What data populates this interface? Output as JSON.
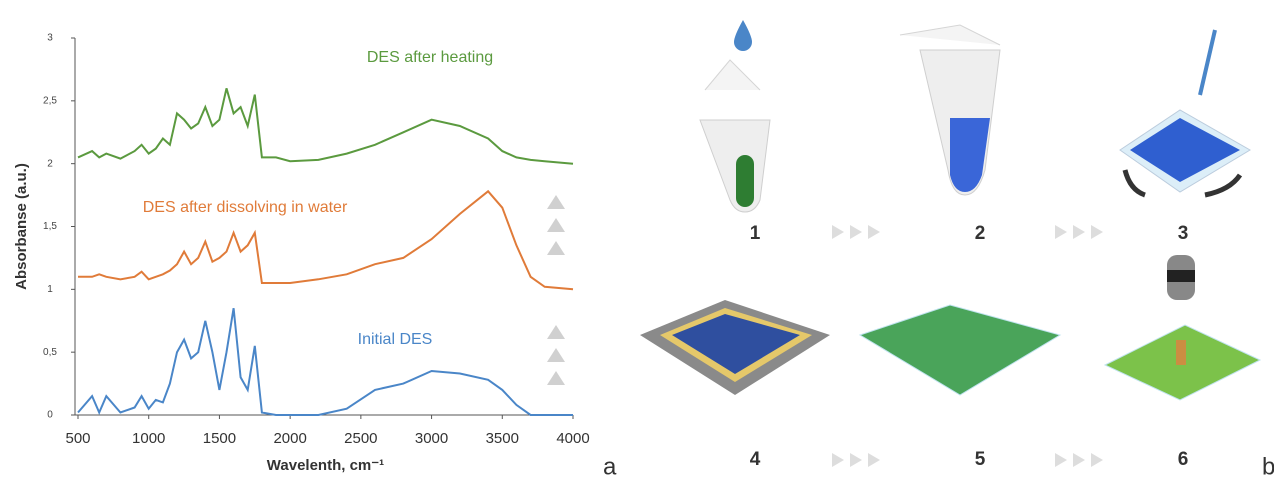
{
  "chart_data": {
    "type": "line",
    "xlabel": "Wavelenth, cm⁻¹",
    "ylabel": "Absorbanse (a.u.)",
    "annotations": [
      "DES after heating",
      "DES after dissolving in water",
      "Initial DES"
    ],
    "x": [
      500,
      600,
      650,
      700,
      800,
      900,
      950,
      1000,
      1050,
      1100,
      1150,
      1200,
      1250,
      1300,
      1350,
      1400,
      1450,
      1500,
      1550,
      1600,
      1650,
      1700,
      1750,
      1800,
      1900,
      2000,
      2200,
      2400,
      2600,
      2800,
      3000,
      3200,
      3400,
      3500,
      3600,
      3700,
      3800,
      4000
    ],
    "series": [
      {
        "name": "DES after heating",
        "color": "#5b9a3f",
        "values": [
          2.05,
          2.1,
          2.05,
          2.08,
          2.04,
          2.1,
          2.15,
          2.08,
          2.12,
          2.2,
          2.15,
          2.4,
          2.35,
          2.28,
          2.32,
          2.45,
          2.3,
          2.35,
          2.6,
          2.4,
          2.45,
          2.3,
          2.55,
          2.05,
          2.05,
          2.02,
          2.03,
          2.08,
          2.15,
          2.25,
          2.35,
          2.3,
          2.2,
          2.1,
          2.05,
          2.03,
          2.02,
          2.0
        ]
      },
      {
        "name": "DES after dissolving in water",
        "color": "#e07b39",
        "values": [
          1.1,
          1.1,
          1.12,
          1.1,
          1.08,
          1.1,
          1.14,
          1.08,
          1.1,
          1.12,
          1.15,
          1.2,
          1.3,
          1.2,
          1.25,
          1.38,
          1.22,
          1.25,
          1.3,
          1.45,
          1.3,
          1.35,
          1.45,
          1.05,
          1.05,
          1.05,
          1.08,
          1.12,
          1.2,
          1.25,
          1.4,
          1.6,
          1.78,
          1.65,
          1.35,
          1.1,
          1.02,
          1.0
        ]
      },
      {
        "name": "Initial DES",
        "color": "#4a86c8",
        "values": [
          0.02,
          0.15,
          0.02,
          0.15,
          0.02,
          0.06,
          0.15,
          0.05,
          0.12,
          0.1,
          0.25,
          0.5,
          0.6,
          0.45,
          0.5,
          0.75,
          0.5,
          0.2,
          0.5,
          0.85,
          0.3,
          0.2,
          0.55,
          0.02,
          0.0,
          0.0,
          0.0,
          0.05,
          0.2,
          0.25,
          0.35,
          0.33,
          0.28,
          0.2,
          0.08,
          0.0,
          0.0,
          0.0
        ]
      }
    ],
    "xlim": [
      500,
      4000
    ],
    "xticks": [
      500,
      1000,
      1500,
      2000,
      2500,
      3000,
      3500,
      4000
    ],
    "ylim": [
      0,
      3
    ],
    "yticks": [
      0,
      {
        "value": 0.5,
        "label": "0,5"
      },
      1,
      {
        "value": 1.5,
        "label": "1,5"
      },
      2,
      {
        "value": 2.5,
        "label": "2,5"
      },
      3
    ]
  },
  "diagram": {
    "steps": [
      "1",
      "2",
      "3",
      "4",
      "5",
      "6"
    ]
  },
  "panel_labels": [
    "a",
    "b"
  ]
}
